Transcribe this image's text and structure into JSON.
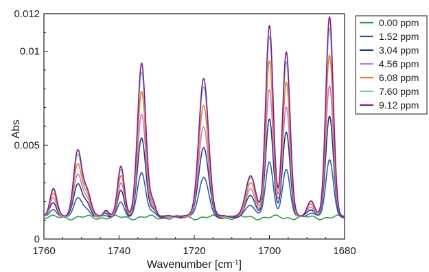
{
  "chart_data": {
    "type": "line",
    "title": "",
    "xlabel_main": "Wavenumber [cm",
    "xlabel_sup": "-1",
    "xlabel_end": "]",
    "ylabel": "Abs",
    "xlim": [
      1760,
      1680
    ],
    "ylim": [
      0,
      0.012
    ],
    "x_reversed": true,
    "grid": false,
    "legend_position": "right-outside-top",
    "x_ticks": [
      1760,
      1740,
      1720,
      1700,
      1680
    ],
    "x_tick_labels": [
      "1760",
      "1740",
      "1720",
      "1700",
      "1680"
    ],
    "y_ticks": [
      0,
      0.005,
      0.01,
      0.012
    ],
    "y_tick_labels": [
      "0",
      "0.005",
      "0.01",
      "0.012"
    ],
    "baseline": 0.00115,
    "peaks": [
      {
        "center": 1757.5,
        "width": 0.9
      },
      {
        "center": 1751,
        "width": 1.1
      },
      {
        "center": 1748.5,
        "width": 1.0
      },
      {
        "center": 1743.5,
        "width": 0.7
      },
      {
        "center": 1739.5,
        "width": 0.9
      },
      {
        "center": 1734,
        "width": 1.1
      },
      {
        "center": 1731,
        "width": 0.8
      },
      {
        "center": 1717.5,
        "width": 1.3
      },
      {
        "center": 1705,
        "width": 1.3
      },
      {
        "center": 1700,
        "width": 1.0
      },
      {
        "center": 1695.5,
        "width": 1.0
      },
      {
        "center": 1689,
        "width": 1.0
      },
      {
        "center": 1684,
        "width": 1.0
      }
    ],
    "series": [
      {
        "name": "0.00 ppm",
        "color": "#2e9a48",
        "scale": 0
      },
      {
        "name": "1.52 ppm",
        "color": "#2f5da3",
        "scale": 0.29
      },
      {
        "name": "3.04 ppm",
        "color": "#223a7a",
        "scale": 0.51
      },
      {
        "name": "4.56 ppm",
        "color": "#d07ac2",
        "scale": 0.66
      },
      {
        "name": "6.08 ppm",
        "color": "#ee7a36",
        "scale": 0.81
      },
      {
        "name": "7.60 ppm",
        "color": "#6cc8d2",
        "scale": 0.94
      },
      {
        "name": "9.12 ppm",
        "color": "#8b1a7e",
        "scale": 1.0
      }
    ],
    "full_heights": [
      0.0015,
      0.00345,
      0.0013,
      0.00035,
      0.0027,
      0.0082,
      0.0007,
      0.0073,
      0.0022,
      0.0102,
      0.0088,
      0.0008,
      0.0106
    ]
  }
}
